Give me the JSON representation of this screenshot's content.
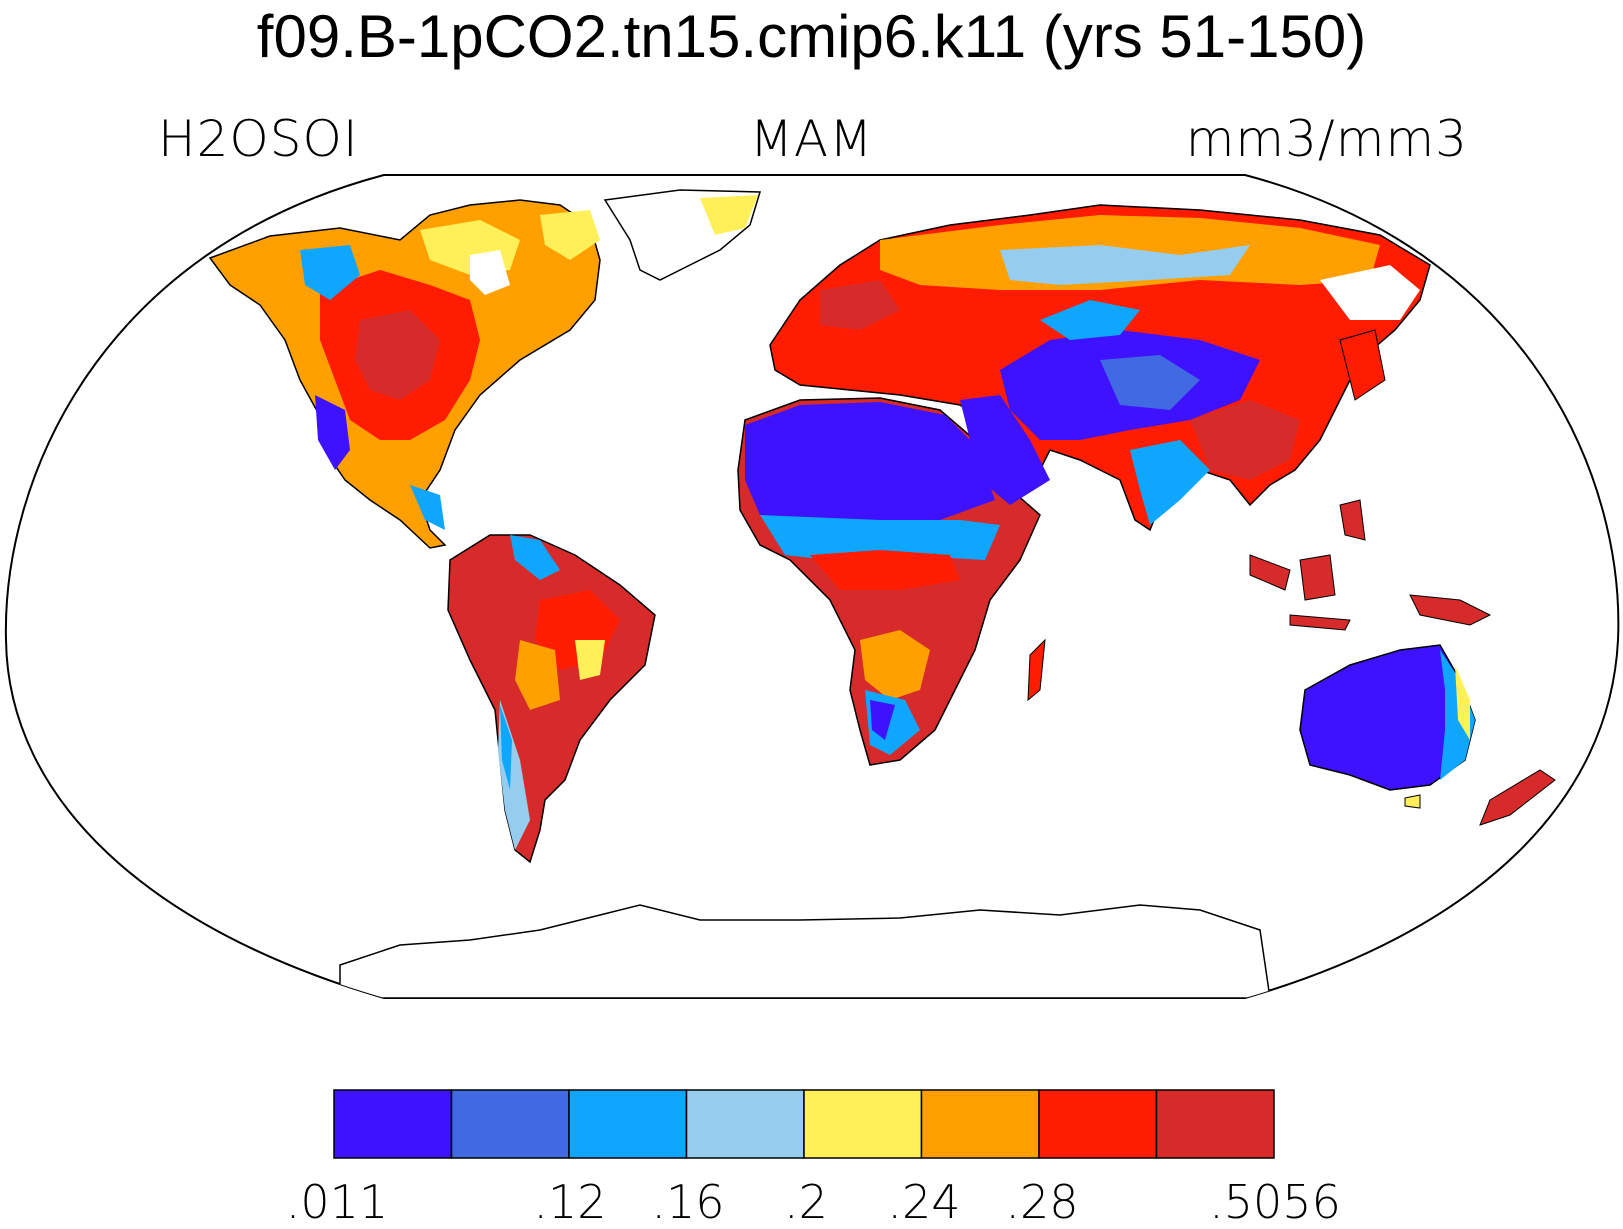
{
  "title": "f09.B-1pCO2.tn15.cmip6.k11 (yrs 51-150)",
  "subtitle_left": "H2OSOI",
  "subtitle_center": "MAM",
  "subtitle_right": "mm3/mm3",
  "projection": "robinson",
  "colorbar": {
    "colors": [
      "#3f12ff",
      "#4169e1",
      "#0fa6ff",
      "#96cdef",
      "#fff05a",
      "#ffa000",
      "#ff1c00",
      "#d72a2a"
    ],
    "tick_labels": [
      ".011",
      ".12",
      ".16",
      ".2",
      ".24",
      ".28",
      ".5056"
    ]
  },
  "map_data": {
    "variable": "H2OSOI",
    "season": "MAM",
    "units": "mm3/mm3",
    "land_fields": [
      {
        "region": "North America",
        "color": "#ff1c00"
      },
      {
        "region": "South America",
        "color": "#d72a2a"
      },
      {
        "region": "Africa",
        "color": "#d72a2a"
      },
      {
        "region": "Sahara / Arabia",
        "color": "#3f12ff"
      },
      {
        "region": "Eurasia",
        "color": "#ffa000"
      },
      {
        "region": "Central Asia",
        "color": "#4169e1"
      },
      {
        "region": "Australia",
        "color": "#3f12ff"
      },
      {
        "region": "Maritime Southeast Asia",
        "color": "#d72a2a"
      },
      {
        "region": "Greenland",
        "color": "#ffffff"
      },
      {
        "region": "Antarctica",
        "color": "#ffffff"
      }
    ]
  }
}
